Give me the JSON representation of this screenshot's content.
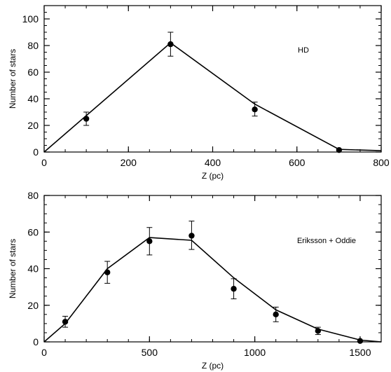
{
  "chart_data": [
    {
      "type": "scatter",
      "title": "",
      "xlabel": "Z (pc)",
      "ylabel": "Number of stars",
      "annotation": "HD",
      "xlim": [
        0,
        800
      ],
      "ylim": [
        0,
        110
      ],
      "xticks": [
        0,
        200,
        400,
        600,
        800
      ],
      "yticks": [
        0,
        20,
        40,
        60,
        80,
        100
      ],
      "x_minor_step": 50,
      "y_minor_step": 5,
      "grid": false,
      "points": [
        {
          "x": 100,
          "y": 25,
          "err_low": 20,
          "err_high": 30
        },
        {
          "x": 300,
          "y": 81,
          "err_low": 72,
          "err_high": 90
        },
        {
          "x": 500,
          "y": 32,
          "err_low": 27,
          "err_high": 37.5
        },
        {
          "x": 700,
          "y": 1.5,
          "err_low": 1.5,
          "err_high": 1.5
        }
      ],
      "model_line": {
        "x": [
          0,
          300,
          500,
          700,
          800
        ],
        "y": [
          0,
          82,
          36,
          2,
          1
        ]
      }
    },
    {
      "type": "scatter",
      "title": "",
      "xlabel": "Z (pc)",
      "ylabel": "Number of stars",
      "annotation": "Eriksson + Oddie",
      "xlim": [
        0,
        1600
      ],
      "ylim": [
        0,
        80
      ],
      "xticks": [
        0,
        500,
        1000,
        1500
      ],
      "yticks": [
        0,
        20,
        40,
        60,
        80
      ],
      "x_minor_step": 100,
      "y_minor_step": 5,
      "grid": false,
      "points": [
        {
          "x": 100,
          "y": 11,
          "err_low": 8,
          "err_high": 14
        },
        {
          "x": 300,
          "y": 38,
          "err_low": 32,
          "err_high": 44
        },
        {
          "x": 500,
          "y": 55,
          "err_low": 47.5,
          "err_high": 62.5
        },
        {
          "x": 700,
          "y": 58,
          "err_low": 50.5,
          "err_high": 66
        },
        {
          "x": 900,
          "y": 29,
          "err_low": 23.5,
          "err_high": 34.5
        },
        {
          "x": 1100,
          "y": 15,
          "err_low": 11,
          "err_high": 19
        },
        {
          "x": 1300,
          "y": 6,
          "err_low": 4,
          "err_high": 8
        },
        {
          "x": 1500,
          "y": 0.5,
          "err_low": 0.5,
          "err_high": 0.5
        }
      ],
      "model_line": {
        "x": [
          0,
          100,
          300,
          500,
          700,
          900,
          1100,
          1300,
          1500,
          1600
        ],
        "y": [
          0,
          10,
          40,
          57,
          55.5,
          35,
          17.5,
          7,
          1,
          0
        ]
      }
    }
  ]
}
